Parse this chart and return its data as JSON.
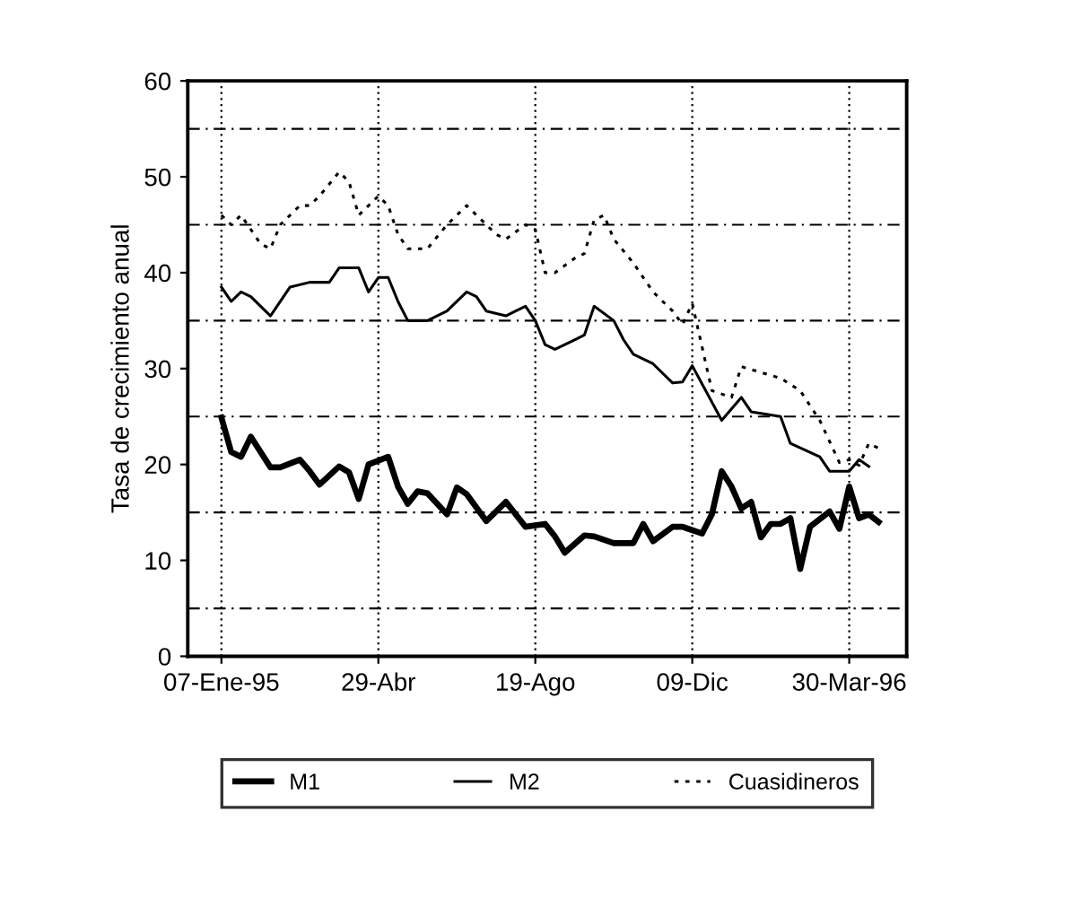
{
  "chart_data": {
    "type": "line",
    "ylabel": "Tasa de crecimiento anual",
    "xlim": [
      "1994-12-14",
      "1996-05-10"
    ],
    "xticks": [
      {
        "value": "1995-01-07",
        "label": "07-Ene-95"
      },
      {
        "value": "1995-04-29",
        "label": "29-Abr"
      },
      {
        "value": "1995-08-19",
        "label": "19-Ago"
      },
      {
        "value": "1995-12-09",
        "label": "09-Dic"
      },
      {
        "value": "1996-03-30",
        "label": "30-Mar-96"
      }
    ],
    "ylim": [
      0,
      60
    ],
    "yticks": [
      0,
      10,
      20,
      30,
      40,
      50,
      60
    ],
    "grid": "x",
    "legend": "bottom",
    "ref_lines": [
      {
        "axis": "y",
        "value": 5,
        "line_style": "dashed"
      },
      {
        "axis": "y",
        "value": 15,
        "line_style": "dashed"
      },
      {
        "axis": "y",
        "value": 25,
        "line_style": "dashed"
      },
      {
        "axis": "y",
        "value": 35,
        "line_style": "dashed"
      },
      {
        "axis": "y",
        "value": 45,
        "line_style": "dashed"
      },
      {
        "axis": "y",
        "value": 55,
        "line_style": "dashed"
      }
    ],
    "series": [
      {
        "name": "M1",
        "color": "#000000",
        "line_style": "solid",
        "x": [
          "1995-01-07",
          "1995-01-14",
          "1995-01-21",
          "1995-01-28",
          "1995-02-11",
          "1995-02-18",
          "1995-03-04",
          "1995-03-11",
          "1995-03-18",
          "1995-04-01",
          "1995-04-08",
          "1995-04-15",
          "1995-04-22",
          "1995-05-06",
          "1995-05-13",
          "1995-05-20",
          "1995-05-27",
          "1995-06-03",
          "1995-06-17",
          "1995-06-24",
          "1995-07-01",
          "1995-07-15",
          "1995-07-29",
          "1995-08-05",
          "1995-08-12",
          "1995-08-26",
          "1995-09-02",
          "1995-09-09",
          "1995-09-23",
          "1995-09-30",
          "1995-10-14",
          "1995-10-28",
          "1995-11-04",
          "1995-11-11",
          "1995-11-25",
          "1995-12-02",
          "1995-12-16",
          "1995-12-23",
          "1995-12-30",
          "1996-01-06",
          "1996-01-13",
          "1996-01-20",
          "1996-01-27",
          "1996-02-03",
          "1996-02-10",
          "1996-02-17",
          "1996-02-24",
          "1996-03-02",
          "1996-03-16",
          "1996-03-23",
          "1996-03-30",
          "1996-04-06",
          "1996-04-13",
          "1996-04-20"
        ],
        "values": [
          24.9,
          21.3,
          20.8,
          22.9,
          19.7,
          19.7,
          20.5,
          19.3,
          17.9,
          19.8,
          19.2,
          16.4,
          20.0,
          20.8,
          17.7,
          15.9,
          17.2,
          17.0,
          14.8,
          17.6,
          16.9,
          14.1,
          16.1,
          14.8,
          13.5,
          13.8,
          12.5,
          10.8,
          12.6,
          12.5,
          11.8,
          11.8,
          13.8,
          12.0,
          13.5,
          13.5,
          12.8,
          14.8,
          19.3,
          17.7,
          15.4,
          16.1,
          12.4,
          13.8,
          13.8,
          14.4,
          9.1,
          13.5,
          15.1,
          13.3,
          17.7,
          14.4,
          14.8,
          14.0
        ]
      },
      {
        "name": "M2",
        "color": "#000000",
        "line_style": "solid",
        "x": [
          "1995-01-07",
          "1995-01-14",
          "1995-01-21",
          "1995-01-28",
          "1995-02-11",
          "1995-02-25",
          "1995-03-11",
          "1995-03-25",
          "1995-04-01",
          "1995-04-15",
          "1995-04-22",
          "1995-04-29",
          "1995-05-06",
          "1995-05-13",
          "1995-05-20",
          "1995-06-03",
          "1995-06-17",
          "1995-07-01",
          "1995-07-08",
          "1995-07-15",
          "1995-07-29",
          "1995-08-05",
          "1995-08-12",
          "1995-08-19",
          "1995-08-26",
          "1995-09-02",
          "1995-09-16",
          "1995-09-23",
          "1995-09-30",
          "1995-10-14",
          "1995-10-21",
          "1995-10-28",
          "1995-11-11",
          "1995-11-25",
          "1995-12-02",
          "1995-12-09",
          "1995-12-30",
          "1996-01-13",
          "1996-01-20",
          "1996-02-10",
          "1996-02-17",
          "1996-03-09",
          "1996-03-16",
          "1996-03-30",
          "1996-04-06",
          "1996-04-13"
        ],
        "values": [
          38.5,
          37,
          38,
          37.5,
          35.5,
          38.5,
          39,
          39,
          40.5,
          40.5,
          38,
          39.5,
          39.5,
          37,
          35,
          35,
          36,
          38,
          37.5,
          36,
          35.5,
          36,
          36.5,
          35,
          32.5,
          32,
          33,
          33.5,
          36.5,
          35,
          33,
          31.5,
          30.5,
          28.5,
          28.6,
          30.3,
          24.6,
          27.0,
          25.5,
          25.0,
          22.2,
          20.8,
          19.3,
          19.3,
          20.5,
          19.8
        ]
      },
      {
        "name": "Cuasidineros",
        "color": "#000000",
        "line_style": "dotted",
        "x": [
          "1995-01-07",
          "1995-01-14",
          "1995-01-21",
          "1995-02-04",
          "1995-02-11",
          "1995-02-18",
          "1995-03-04",
          "1995-03-11",
          "1995-03-18",
          "1995-04-01",
          "1995-04-08",
          "1995-04-15",
          "1995-04-29",
          "1995-05-06",
          "1995-05-13",
          "1995-05-20",
          "1995-06-03",
          "1995-06-17",
          "1995-07-01",
          "1995-07-08",
          "1995-07-22",
          "1995-07-29",
          "1995-08-12",
          "1995-08-19",
          "1995-08-26",
          "1995-09-02",
          "1995-09-16",
          "1995-09-23",
          "1995-09-30",
          "1995-10-07",
          "1995-10-14",
          "1995-10-28",
          "1995-11-11",
          "1995-11-25",
          "1995-12-02",
          "1995-12-09",
          "1995-12-23",
          "1996-01-06",
          "1996-01-13",
          "1996-01-27",
          "1996-02-10",
          "1996-02-24",
          "1996-03-09",
          "1996-03-23",
          "1996-03-30",
          "1996-04-06",
          "1996-04-13",
          "1996-04-20"
        ],
        "values": [
          46,
          45,
          46,
          43,
          42.5,
          45,
          47,
          47,
          48,
          50.5,
          49.5,
          46,
          48,
          47,
          44,
          42.5,
          42.5,
          45,
          47,
          46,
          44,
          43.5,
          45,
          44.5,
          40,
          40,
          41.5,
          42,
          45.5,
          46,
          43.5,
          41,
          38,
          36,
          34.6,
          36.8,
          27.7,
          27.0,
          30.2,
          29.6,
          29.0,
          27.7,
          24.6,
          20.2,
          20.5,
          19.9,
          22.2,
          21.7
        ]
      }
    ]
  }
}
